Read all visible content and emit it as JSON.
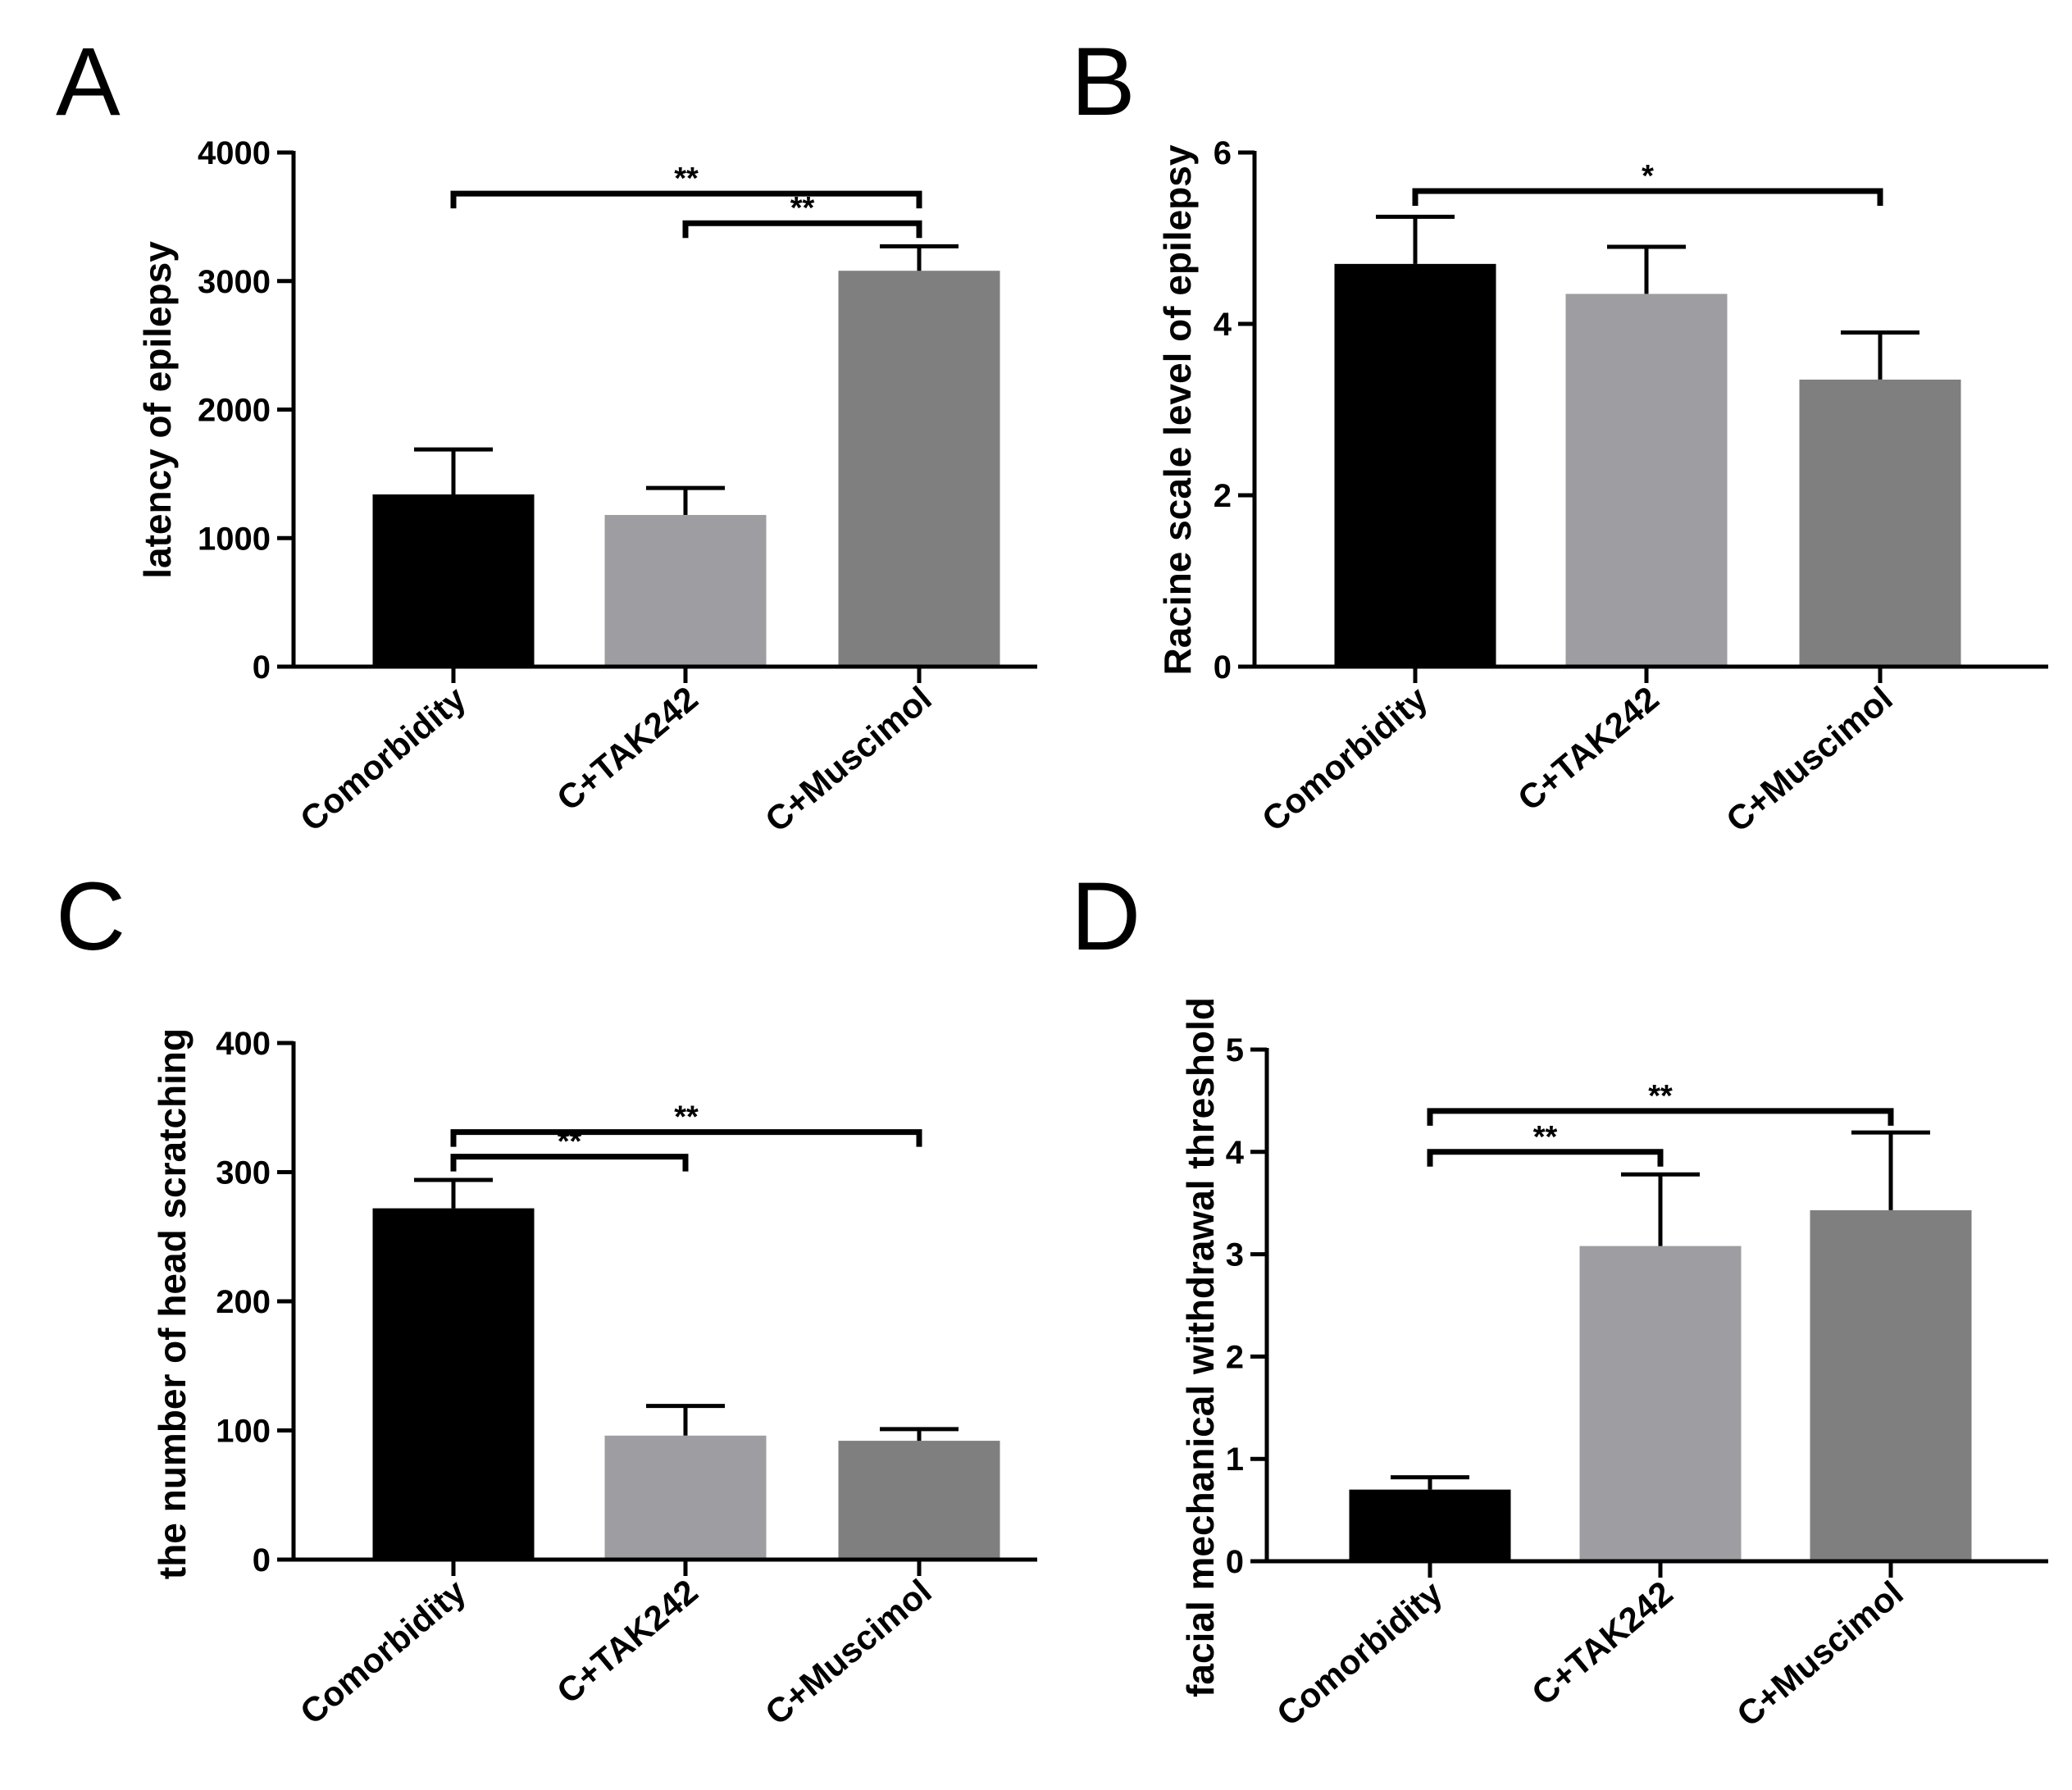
{
  "chart_data": [
    {
      "panel": "A",
      "type": "bar",
      "ylabel": "latency of epilepsy",
      "categories": [
        "Comorbidity",
        "C+TAK242",
        "C+Muscimol"
      ],
      "values": [
        1340,
        1180,
        3080
      ],
      "errors": [
        350,
        210,
        190
      ],
      "colors": [
        "#000000",
        "#9d9da2",
        "#7f7f7f"
      ],
      "ylim": [
        0,
        4000
      ],
      "yticks": [
        "0",
        "1000",
        "2000",
        "3000",
        "4000"
      ],
      "significance": [
        {
          "from": 0,
          "to": 2,
          "level": 3680,
          "label": "**"
        },
        {
          "from": 1,
          "to": 2,
          "level": 3450,
          "label": "**"
        }
      ]
    },
    {
      "panel": "B",
      "type": "bar",
      "ylabel": "Racine scale level of epilepsy",
      "categories": [
        "Comorbidity",
        "C+TAK242",
        "C+Muscimol"
      ],
      "values": [
        4.7,
        4.35,
        3.35
      ],
      "errors": [
        0.55,
        0.55,
        0.55
      ],
      "colors": [
        "#000000",
        "#9d9da2",
        "#7f7f7f"
      ],
      "ylim": [
        0,
        6
      ],
      "yticks": [
        "0",
        "2",
        "4",
        "6"
      ],
      "significance": [
        {
          "from": 0,
          "to": 2,
          "level": 5.55,
          "label": "*"
        }
      ]
    },
    {
      "panel": "C",
      "type": "bar",
      "ylabel": "the number of head scratching",
      "categories": [
        "Comorbidity",
        "C+TAK242",
        "C+Muscimol"
      ],
      "values": [
        272,
        96,
        92
      ],
      "errors": [
        22,
        23,
        9
      ],
      "colors": [
        "#000000",
        "#9d9da2",
        "#7f7f7f"
      ],
      "ylim": [
        0,
        400
      ],
      "yticks": [
        "0",
        "100",
        "200",
        "300",
        "400"
      ],
      "significance": [
        {
          "from": 0,
          "to": 2,
          "level": 331,
          "label": "**"
        },
        {
          "from": 0,
          "to": 1,
          "level": 312,
          "label": "**"
        }
      ]
    },
    {
      "panel": "D",
      "type": "bar",
      "ylabel": "facial mechanical withdrawal  threshold",
      "categories": [
        "Comorbidity",
        "C+TAK242",
        "C+Muscimol"
      ],
      "values": [
        0.7,
        3.08,
        3.43
      ],
      "errors": [
        0.12,
        0.7,
        0.76
      ],
      "colors": [
        "#000000",
        "#9d9da2",
        "#7f7f7f"
      ],
      "ylim": [
        0,
        5
      ],
      "yticks": [
        "0",
        "1",
        "2",
        "3",
        "4",
        "5"
      ],
      "significance": [
        {
          "from": 0,
          "to": 2,
          "level": 4.4,
          "label": "**"
        },
        {
          "from": 0,
          "to": 1,
          "level": 4.0,
          "label": "**"
        }
      ]
    }
  ]
}
